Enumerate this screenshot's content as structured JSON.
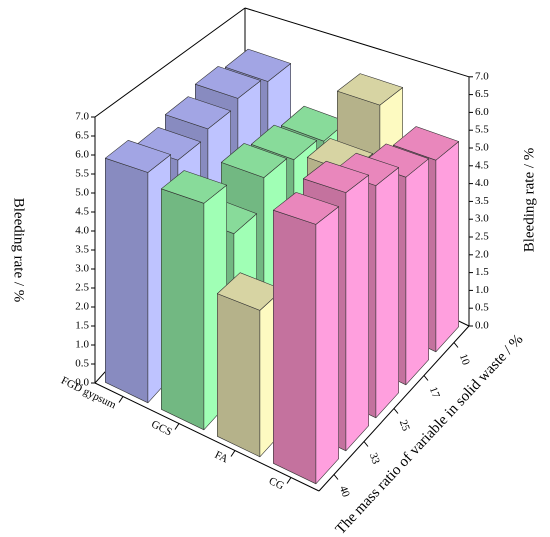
{
  "chart_data": {
    "type": "bar3d",
    "categories": [
      "10",
      "17",
      "25",
      "33",
      "40"
    ],
    "series": [
      {
        "name": "FGD gypsum",
        "color": "#aaaef0",
        "values": [
          5.8,
          6.0,
          5.8,
          5.6,
          5.9
        ]
      },
      {
        "name": "GCS",
        "color": "#8fe6a2",
        "values": [
          4.6,
          4.8,
          5.0,
          4.2,
          5.6
        ]
      },
      {
        "name": "FA",
        "color": "#e2dfac",
        "values": [
          6.2,
          5.0,
          3.8,
          2.4,
          3.5
        ]
      },
      {
        "name": "CG",
        "color": "#f58ec6",
        "values": [
          5.2,
          5.4,
          5.8,
          6.2,
          6.0
        ]
      }
    ],
    "ylabel": "Bleeding rate / %",
    "y2label": "Bleeding rate / %",
    "zlabel": "The mass ratio of variable in solid waste / %",
    "ylim": [
      0,
      7
    ],
    "yticks": [
      {
        "value": 0,
        "label": "0.0"
      },
      {
        "value": 0.5,
        "label": "0.5"
      },
      {
        "value": 1,
        "label": "1.0"
      },
      {
        "value": 1.5,
        "label": "1.5"
      },
      {
        "value": 2,
        "label": "2.0"
      },
      {
        "value": 2.5,
        "label": "2.5"
      },
      {
        "value": 3,
        "label": "3.0"
      },
      {
        "value": 3.5,
        "label": "3.5"
      },
      {
        "value": 4,
        "label": "4.0"
      },
      {
        "value": 4.5,
        "label": "4.5"
      },
      {
        "value": 5,
        "label": "5.0"
      },
      {
        "value": 5.5,
        "label": "5.5"
      },
      {
        "value": 6,
        "label": "6.0"
      },
      {
        "value": 6.5,
        "label": "6.5"
      },
      {
        "value": 7,
        "label": "7.0"
      }
    ]
  }
}
